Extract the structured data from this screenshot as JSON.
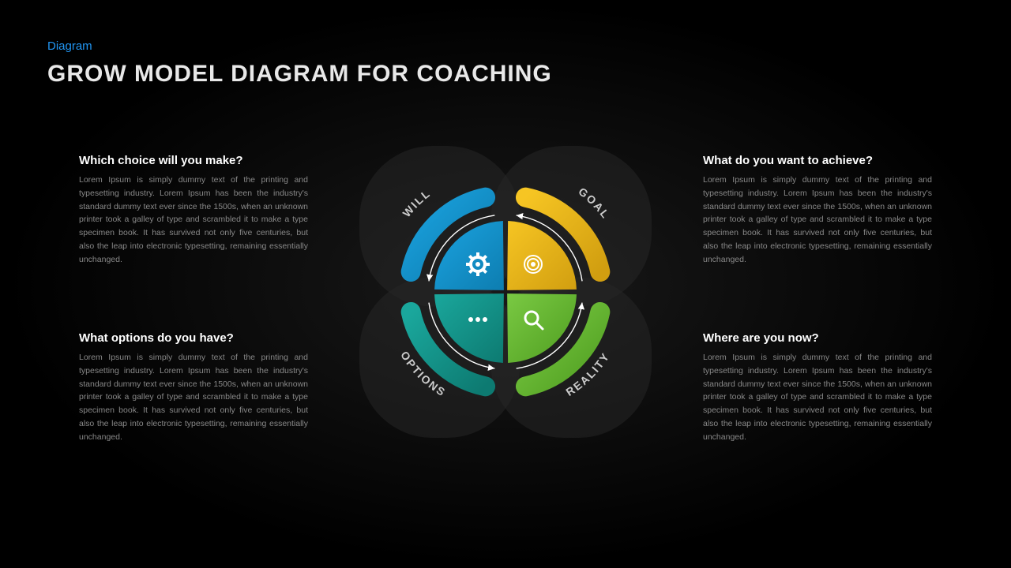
{
  "header": {
    "subtitle": "Diagram",
    "title": "GROW MODEL DIAGRAM FOR COACHING"
  },
  "blocks": {
    "tl": {
      "heading": "Which choice will you make?",
      "body": "Lorem Ipsum is simply dummy text of the printing and typesetting industry. Lorem Ipsum has been the industry's standard dummy text ever since the 1500s, when an unknown printer took a galley of type and scrambled it to make a type specimen book. It has survived not only five centuries, but also the leap into electronic typesetting, remaining essentially unchanged."
    },
    "tr": {
      "heading": "What do you want to achieve?",
      "body": "Lorem Ipsum is simply dummy text of the printing and typesetting industry. Lorem Ipsum has been the industry's standard dummy text ever since the 1500s, when an unknown printer took a galley of type and scrambled it to make a type specimen book. It has survived not only five centuries, but also the leap into electronic typesetting, remaining essentially unchanged."
    },
    "bl": {
      "heading": "What options do you have?",
      "body": "Lorem Ipsum is simply dummy text of the printing and typesetting industry. Lorem Ipsum has been the industry's standard dummy text ever since the 1500s, when an unknown printer took a galley of type and scrambled it to make a type specimen book. It has survived not only five centuries, but also the leap into electronic typesetting, remaining essentially unchanged."
    },
    "br": {
      "heading": "Where are you now?",
      "body": "Lorem Ipsum is simply dummy text of the printing and typesetting industry. Lorem Ipsum has been the industry's standard dummy text ever since the 1500s, when an unknown printer took a galley of type and scrambled it to make a type specimen book. It has survived not only five centuries, but also the leap into electronic typesetting, remaining essentially unchanged."
    }
  },
  "diagram": {
    "type": "quadrant-wheel",
    "background_color": "#000000",
    "petal_bg": "#262626",
    "arrow_circle_color": "#ffffff",
    "label_color": "#cccccc",
    "label_fontsize": 14,
    "quadrants": [
      {
        "key": "will",
        "label": "WILL",
        "color": "#1ba3e0",
        "color_dark": "#0d7db0",
        "icon": "gear",
        "angle_center": 135
      },
      {
        "key": "goal",
        "label": "GOAL",
        "color": "#f6c523",
        "color_dark": "#d19e10",
        "icon": "target",
        "angle_center": 45
      },
      {
        "key": "reality",
        "label": "REALITY",
        "color": "#7ac943",
        "color_dark": "#4f9e20",
        "icon": "search",
        "angle_center": 315
      },
      {
        "key": "options",
        "label": "OPTIONS",
        "color": "#1aa79c",
        "color_dark": "#0d7a71",
        "icon": "dots",
        "angle_center": 225
      }
    ],
    "inner_radius": 90,
    "outer_arc_r1": 110,
    "outer_arc_r2": 135,
    "petal_radius": 185
  }
}
